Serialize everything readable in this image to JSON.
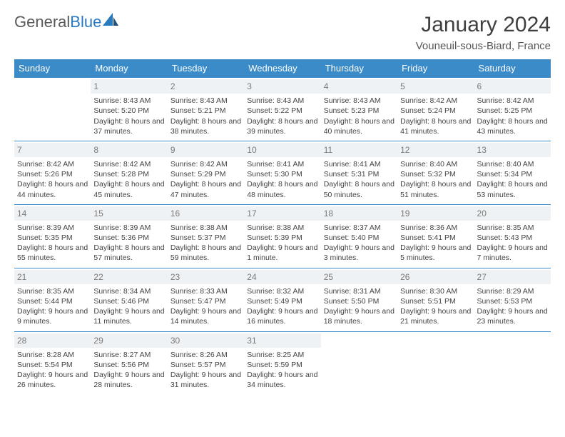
{
  "brand": {
    "part1": "General",
    "part2": "Blue"
  },
  "title": "January 2024",
  "location": "Vouneuil-sous-Biard, France",
  "weekdays": [
    "Sunday",
    "Monday",
    "Tuesday",
    "Wednesday",
    "Thursday",
    "Friday",
    "Saturday"
  ],
  "colors": {
    "header_bg": "#3b8bc9",
    "header_text": "#ffffff",
    "daynum_bg": "#eef2f5",
    "daynum_text": "#7a7a7a",
    "cell_border": "#3b8bc9",
    "logo_gray": "#5a5a5a",
    "logo_blue": "#2a7ac0"
  },
  "cells": [
    [
      {
        "day": "",
        "sunrise": "",
        "sunset": "",
        "daylight": ""
      },
      {
        "day": "1",
        "sunrise": "Sunrise: 8:43 AM",
        "sunset": "Sunset: 5:20 PM",
        "daylight": "Daylight: 8 hours and 37 minutes."
      },
      {
        "day": "2",
        "sunrise": "Sunrise: 8:43 AM",
        "sunset": "Sunset: 5:21 PM",
        "daylight": "Daylight: 8 hours and 38 minutes."
      },
      {
        "day": "3",
        "sunrise": "Sunrise: 8:43 AM",
        "sunset": "Sunset: 5:22 PM",
        "daylight": "Daylight: 8 hours and 39 minutes."
      },
      {
        "day": "4",
        "sunrise": "Sunrise: 8:43 AM",
        "sunset": "Sunset: 5:23 PM",
        "daylight": "Daylight: 8 hours and 40 minutes."
      },
      {
        "day": "5",
        "sunrise": "Sunrise: 8:42 AM",
        "sunset": "Sunset: 5:24 PM",
        "daylight": "Daylight: 8 hours and 41 minutes."
      },
      {
        "day": "6",
        "sunrise": "Sunrise: 8:42 AM",
        "sunset": "Sunset: 5:25 PM",
        "daylight": "Daylight: 8 hours and 43 minutes."
      }
    ],
    [
      {
        "day": "7",
        "sunrise": "Sunrise: 8:42 AM",
        "sunset": "Sunset: 5:26 PM",
        "daylight": "Daylight: 8 hours and 44 minutes."
      },
      {
        "day": "8",
        "sunrise": "Sunrise: 8:42 AM",
        "sunset": "Sunset: 5:28 PM",
        "daylight": "Daylight: 8 hours and 45 minutes."
      },
      {
        "day": "9",
        "sunrise": "Sunrise: 8:42 AM",
        "sunset": "Sunset: 5:29 PM",
        "daylight": "Daylight: 8 hours and 47 minutes."
      },
      {
        "day": "10",
        "sunrise": "Sunrise: 8:41 AM",
        "sunset": "Sunset: 5:30 PM",
        "daylight": "Daylight: 8 hours and 48 minutes."
      },
      {
        "day": "11",
        "sunrise": "Sunrise: 8:41 AM",
        "sunset": "Sunset: 5:31 PM",
        "daylight": "Daylight: 8 hours and 50 minutes."
      },
      {
        "day": "12",
        "sunrise": "Sunrise: 8:40 AM",
        "sunset": "Sunset: 5:32 PM",
        "daylight": "Daylight: 8 hours and 51 minutes."
      },
      {
        "day": "13",
        "sunrise": "Sunrise: 8:40 AM",
        "sunset": "Sunset: 5:34 PM",
        "daylight": "Daylight: 8 hours and 53 minutes."
      }
    ],
    [
      {
        "day": "14",
        "sunrise": "Sunrise: 8:39 AM",
        "sunset": "Sunset: 5:35 PM",
        "daylight": "Daylight: 8 hours and 55 minutes."
      },
      {
        "day": "15",
        "sunrise": "Sunrise: 8:39 AM",
        "sunset": "Sunset: 5:36 PM",
        "daylight": "Daylight: 8 hours and 57 minutes."
      },
      {
        "day": "16",
        "sunrise": "Sunrise: 8:38 AM",
        "sunset": "Sunset: 5:37 PM",
        "daylight": "Daylight: 8 hours and 59 minutes."
      },
      {
        "day": "17",
        "sunrise": "Sunrise: 8:38 AM",
        "sunset": "Sunset: 5:39 PM",
        "daylight": "Daylight: 9 hours and 1 minute."
      },
      {
        "day": "18",
        "sunrise": "Sunrise: 8:37 AM",
        "sunset": "Sunset: 5:40 PM",
        "daylight": "Daylight: 9 hours and 3 minutes."
      },
      {
        "day": "19",
        "sunrise": "Sunrise: 8:36 AM",
        "sunset": "Sunset: 5:41 PM",
        "daylight": "Daylight: 9 hours and 5 minutes."
      },
      {
        "day": "20",
        "sunrise": "Sunrise: 8:35 AM",
        "sunset": "Sunset: 5:43 PM",
        "daylight": "Daylight: 9 hours and 7 minutes."
      }
    ],
    [
      {
        "day": "21",
        "sunrise": "Sunrise: 8:35 AM",
        "sunset": "Sunset: 5:44 PM",
        "daylight": "Daylight: 9 hours and 9 minutes."
      },
      {
        "day": "22",
        "sunrise": "Sunrise: 8:34 AM",
        "sunset": "Sunset: 5:46 PM",
        "daylight": "Daylight: 9 hours and 11 minutes."
      },
      {
        "day": "23",
        "sunrise": "Sunrise: 8:33 AM",
        "sunset": "Sunset: 5:47 PM",
        "daylight": "Daylight: 9 hours and 14 minutes."
      },
      {
        "day": "24",
        "sunrise": "Sunrise: 8:32 AM",
        "sunset": "Sunset: 5:49 PM",
        "daylight": "Daylight: 9 hours and 16 minutes."
      },
      {
        "day": "25",
        "sunrise": "Sunrise: 8:31 AM",
        "sunset": "Sunset: 5:50 PM",
        "daylight": "Daylight: 9 hours and 18 minutes."
      },
      {
        "day": "26",
        "sunrise": "Sunrise: 8:30 AM",
        "sunset": "Sunset: 5:51 PM",
        "daylight": "Daylight: 9 hours and 21 minutes."
      },
      {
        "day": "27",
        "sunrise": "Sunrise: 8:29 AM",
        "sunset": "Sunset: 5:53 PM",
        "daylight": "Daylight: 9 hours and 23 minutes."
      }
    ],
    [
      {
        "day": "28",
        "sunrise": "Sunrise: 8:28 AM",
        "sunset": "Sunset: 5:54 PM",
        "daylight": "Daylight: 9 hours and 26 minutes."
      },
      {
        "day": "29",
        "sunrise": "Sunrise: 8:27 AM",
        "sunset": "Sunset: 5:56 PM",
        "daylight": "Daylight: 9 hours and 28 minutes."
      },
      {
        "day": "30",
        "sunrise": "Sunrise: 8:26 AM",
        "sunset": "Sunset: 5:57 PM",
        "daylight": "Daylight: 9 hours and 31 minutes."
      },
      {
        "day": "31",
        "sunrise": "Sunrise: 8:25 AM",
        "sunset": "Sunset: 5:59 PM",
        "daylight": "Daylight: 9 hours and 34 minutes."
      },
      {
        "day": "",
        "sunrise": "",
        "sunset": "",
        "daylight": ""
      },
      {
        "day": "",
        "sunrise": "",
        "sunset": "",
        "daylight": ""
      },
      {
        "day": "",
        "sunrise": "",
        "sunset": "",
        "daylight": ""
      }
    ]
  ]
}
